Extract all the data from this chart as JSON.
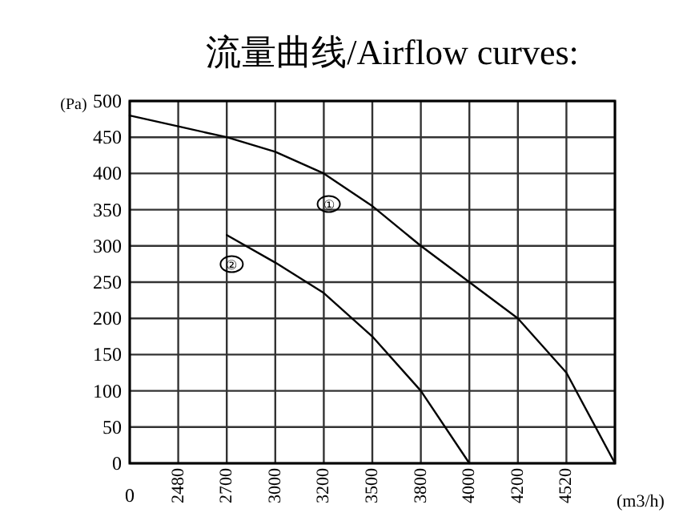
{
  "chart_data": {
    "type": "line",
    "title": "流量曲线/Airflow curves:",
    "ylabel": "(Pa)",
    "xlabel": "(m3/h)",
    "categories": [
      "0",
      "2480",
      "2700",
      "3000",
      "3200",
      "3500",
      "3800",
      "4000",
      "4200",
      "4520",
      null
    ],
    "series": [
      {
        "name": "①",
        "color": "#000000",
        "values": [
          480,
          465,
          450,
          430,
          400,
          355,
          300,
          250,
          200,
          125,
          0
        ]
      },
      {
        "name": "②",
        "color": "#000000",
        "values": [
          null,
          null,
          315,
          277,
          235,
          175,
          100,
          0,
          null,
          null,
          null
        ]
      }
    ],
    "ylim": [
      0,
      500
    ],
    "yticks": [
      0,
      50,
      100,
      150,
      200,
      250,
      300,
      350,
      400,
      450,
      500
    ],
    "grid": true,
    "marker": "none",
    "line_style": "solid"
  }
}
